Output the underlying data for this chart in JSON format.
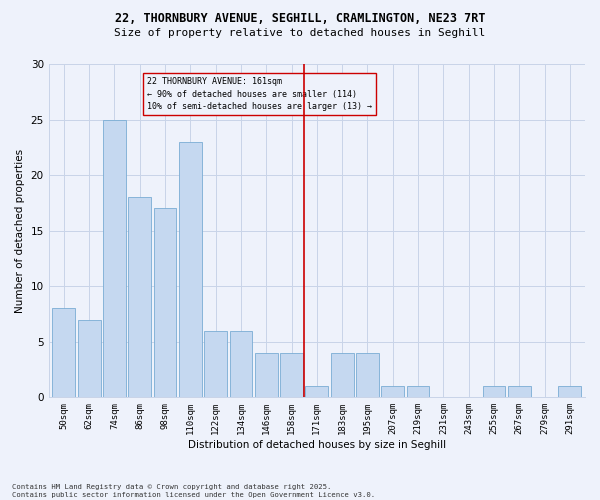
{
  "title_line1": "22, THORNBURY AVENUE, SEGHILL, CRAMLINGTON, NE23 7RT",
  "title_line2": "Size of property relative to detached houses in Seghill",
  "xlabel": "Distribution of detached houses by size in Seghill",
  "ylabel": "Number of detached properties",
  "bar_labels": [
    "50sqm",
    "62sqm",
    "74sqm",
    "86sqm",
    "98sqm",
    "110sqm",
    "122sqm",
    "134sqm",
    "146sqm",
    "158sqm",
    "171sqm",
    "183sqm",
    "195sqm",
    "207sqm",
    "219sqm",
    "231sqm",
    "243sqm",
    "255sqm",
    "267sqm",
    "279sqm",
    "291sqm"
  ],
  "bar_values": [
    8,
    7,
    25,
    18,
    17,
    23,
    6,
    6,
    4,
    4,
    1,
    4,
    4,
    1,
    1,
    0,
    0,
    1,
    1,
    0,
    1
  ],
  "bar_color": "#c5d8f0",
  "bar_edge_color": "#7aadd4",
  "vline_x_idx": 9.5,
  "vline_color": "#cc0000",
  "annotation_title": "22 THORNBURY AVENUE: 161sqm",
  "annotation_line2": "← 90% of detached houses are smaller (114)",
  "annotation_line3": "10% of semi-detached houses are larger (13) →",
  "annotation_box_color": "#cc0000",
  "ylim": [
    0,
    30
  ],
  "yticks": [
    0,
    5,
    10,
    15,
    20,
    25,
    30
  ],
  "background_color": "#eef2fb",
  "grid_color": "#c8d4e8",
  "footer_line1": "Contains HM Land Registry data © Crown copyright and database right 2025.",
  "footer_line2": "Contains public sector information licensed under the Open Government Licence v3.0."
}
